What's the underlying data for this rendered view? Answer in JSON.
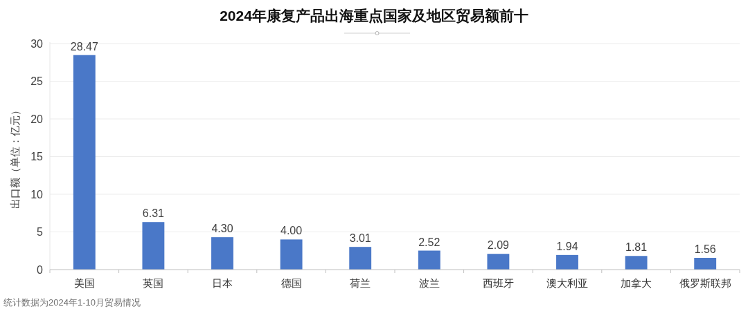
{
  "chart_data": {
    "type": "bar",
    "title": "2024年康复产品出海重点国家及地区贸易额前十",
    "ylabel": "出口额（单位：亿元）",
    "categories": [
      "美国",
      "英国",
      "日本",
      "德国",
      "荷兰",
      "波兰",
      "西班牙",
      "澳大利亚",
      "加拿大",
      "俄罗斯联邦"
    ],
    "values": [
      28.47,
      6.31,
      4.3,
      4.0,
      3.01,
      2.52,
      2.09,
      1.94,
      1.81,
      1.56
    ],
    "value_labels": [
      "28.47",
      "6.31",
      "4.30",
      "4.00",
      "3.01",
      "2.52",
      "2.09",
      "1.94",
      "1.81",
      "1.56"
    ],
    "color": "#4a78c8",
    "ylim": [
      0,
      30
    ],
    "yticks": [
      0,
      5,
      10,
      15,
      20,
      25,
      30
    ],
    "grid": "y",
    "annotations": [
      "统计数据为2024年1-10月贸易情况"
    ]
  }
}
